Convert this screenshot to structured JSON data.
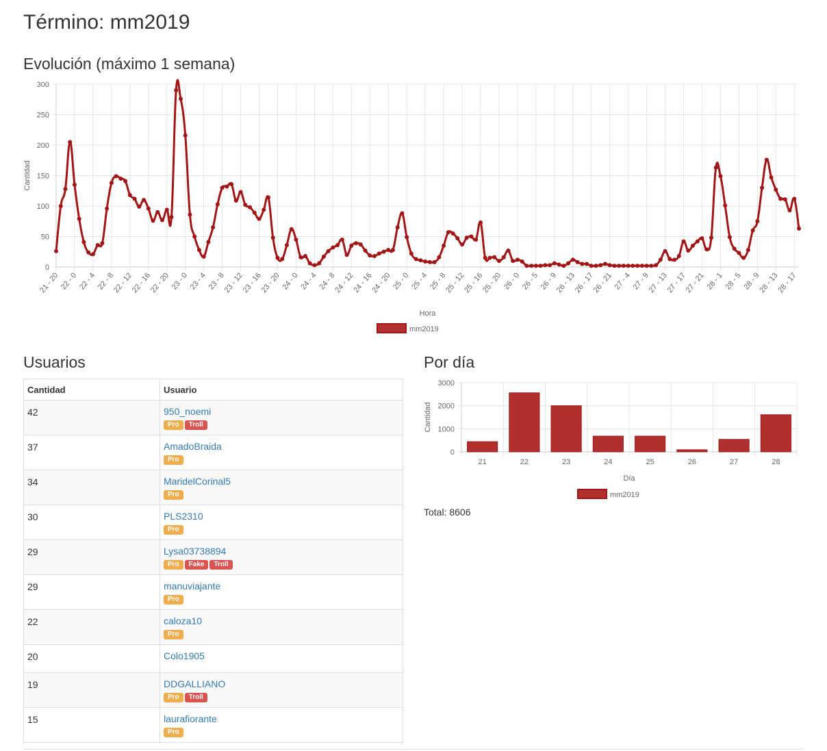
{
  "page": {
    "title": "Término: mm2019",
    "evolution_title": "Evolución (máximo 1 semana)",
    "users_title": "Usuarios",
    "per_day_title": "Por día",
    "total_text": "Total: 8606"
  },
  "colors": {
    "series": "#a31515",
    "series_fill": "#b0302f",
    "grid": "#e5e5e5"
  },
  "chart_data": [
    {
      "type": "line",
      "series": [
        {
          "name": "mm2019",
          "values": [
            26,
            100,
            128,
            205,
            135,
            79,
            41,
            24,
            21,
            36,
            39,
            96,
            138,
            149,
            145,
            141,
            118,
            112,
            99,
            110,
            96,
            76,
            90,
            77,
            94,
            82,
            290,
            276,
            216,
            86,
            50,
            28,
            17,
            41,
            65,
            103,
            130,
            132,
            136,
            109,
            123,
            102,
            98,
            89,
            79,
            94,
            114,
            48,
            15,
            13,
            36,
            62,
            45,
            16,
            18,
            6,
            3,
            6,
            17,
            26,
            32,
            36,
            45,
            20,
            35,
            39,
            37,
            27,
            19,
            18,
            22,
            25,
            28,
            28,
            65,
            88,
            49,
            22,
            13,
            11,
            9,
            8,
            8,
            16,
            35,
            57,
            55,
            47,
            37,
            48,
            50,
            45,
            73,
            15,
            15,
            16,
            10,
            16,
            27,
            10,
            12,
            9,
            2,
            2,
            2,
            2,
            3,
            3,
            6,
            4,
            2,
            6,
            12,
            8,
            5,
            5,
            2,
            2,
            3,
            5,
            3,
            2,
            2,
            2,
            2,
            2,
            2,
            2,
            2,
            2,
            3,
            12,
            26,
            13,
            12,
            18,
            42,
            27,
            35,
            42,
            47,
            29,
            48,
            163,
            149,
            101,
            49,
            30,
            23,
            15,
            28,
            60,
            75,
            130,
            176,
            147,
            127,
            112,
            111,
            93,
            112,
            63
          ]
        }
      ],
      "x_tick_labels": [
        "21 - 20",
        "22 - 0",
        "22 - 4",
        "22 - 8",
        "22 - 12",
        "22 - 16",
        "22 - 20",
        "23 - 0",
        "23 - 4",
        "23 - 8",
        "23 - 12",
        "23 - 16",
        "23 - 20",
        "24 - 0",
        "24 - 4",
        "24 - 8",
        "24 - 12",
        "24 - 16",
        "24 - 20",
        "25 - 0",
        "25 - 4",
        "25 - 8",
        "25 - 12",
        "25 - 16",
        "25 - 20",
        "26 - 0",
        "26 - 5",
        "26 - 9",
        "26 - 13",
        "26 - 17",
        "26 - 21",
        "27 - 4",
        "27 - 9",
        "27 - 13",
        "27 - 17",
        "27 - 21",
        "28 - 1",
        "28 - 5",
        "28 - 9",
        "28 - 13",
        "28 - 17"
      ],
      "x_tick_indices": [
        0,
        4,
        8,
        12,
        16,
        20,
        24,
        28,
        32,
        36,
        40,
        44,
        48,
        52,
        56,
        60,
        64,
        68,
        72,
        76,
        80,
        84,
        88,
        92,
        96,
        100,
        104,
        108,
        112,
        116,
        120,
        124,
        128,
        132,
        136,
        140,
        144,
        148,
        152,
        156,
        160
      ],
      "y_ticks": [
        0,
        50,
        100,
        150,
        200,
        250,
        300
      ],
      "ylim": [
        0,
        300
      ],
      "xlabel": "Hora",
      "ylabel": "Cantidad",
      "grid": true,
      "legend": "bottom"
    },
    {
      "type": "bar",
      "categories": [
        "21",
        "22",
        "23",
        "24",
        "25",
        "26",
        "27",
        "28"
      ],
      "series": [
        {
          "name": "mm2019",
          "values": [
            440,
            2560,
            2000,
            680,
            680,
            90,
            540,
            1610
          ]
        }
      ],
      "y_ticks": [
        0,
        1000,
        2000,
        3000
      ],
      "ylim": [
        0,
        3000
      ],
      "xlabel": "Día",
      "ylabel": "Cantidad",
      "grid": true,
      "legend": "bottom"
    }
  ],
  "users_table": {
    "headers": [
      "Cantidad",
      "Usuario"
    ],
    "rows": [
      {
        "count": "42",
        "user": "950_noemi",
        "badges": [
          "Pro",
          "Troll"
        ]
      },
      {
        "count": "37",
        "user": "AmadoBraida",
        "badges": [
          "Pro"
        ]
      },
      {
        "count": "34",
        "user": "MaridelCorinal5",
        "badges": [
          "Pro"
        ]
      },
      {
        "count": "30",
        "user": "PLS2310",
        "badges": [
          "Pro"
        ]
      },
      {
        "count": "29",
        "user": "Lysa03738894",
        "badges": [
          "Pro",
          "Fake",
          "Troll"
        ]
      },
      {
        "count": "29",
        "user": "manuviajante",
        "badges": [
          "Pro"
        ]
      },
      {
        "count": "22",
        "user": "caloza10",
        "badges": [
          "Pro"
        ]
      },
      {
        "count": "20",
        "user": "Colo1905",
        "badges": []
      },
      {
        "count": "19",
        "user": "DDGALLIANO",
        "badges": [
          "Pro",
          "Troll"
        ]
      },
      {
        "count": "15",
        "user": "laurafiorante",
        "badges": [
          "Pro"
        ]
      }
    ]
  }
}
